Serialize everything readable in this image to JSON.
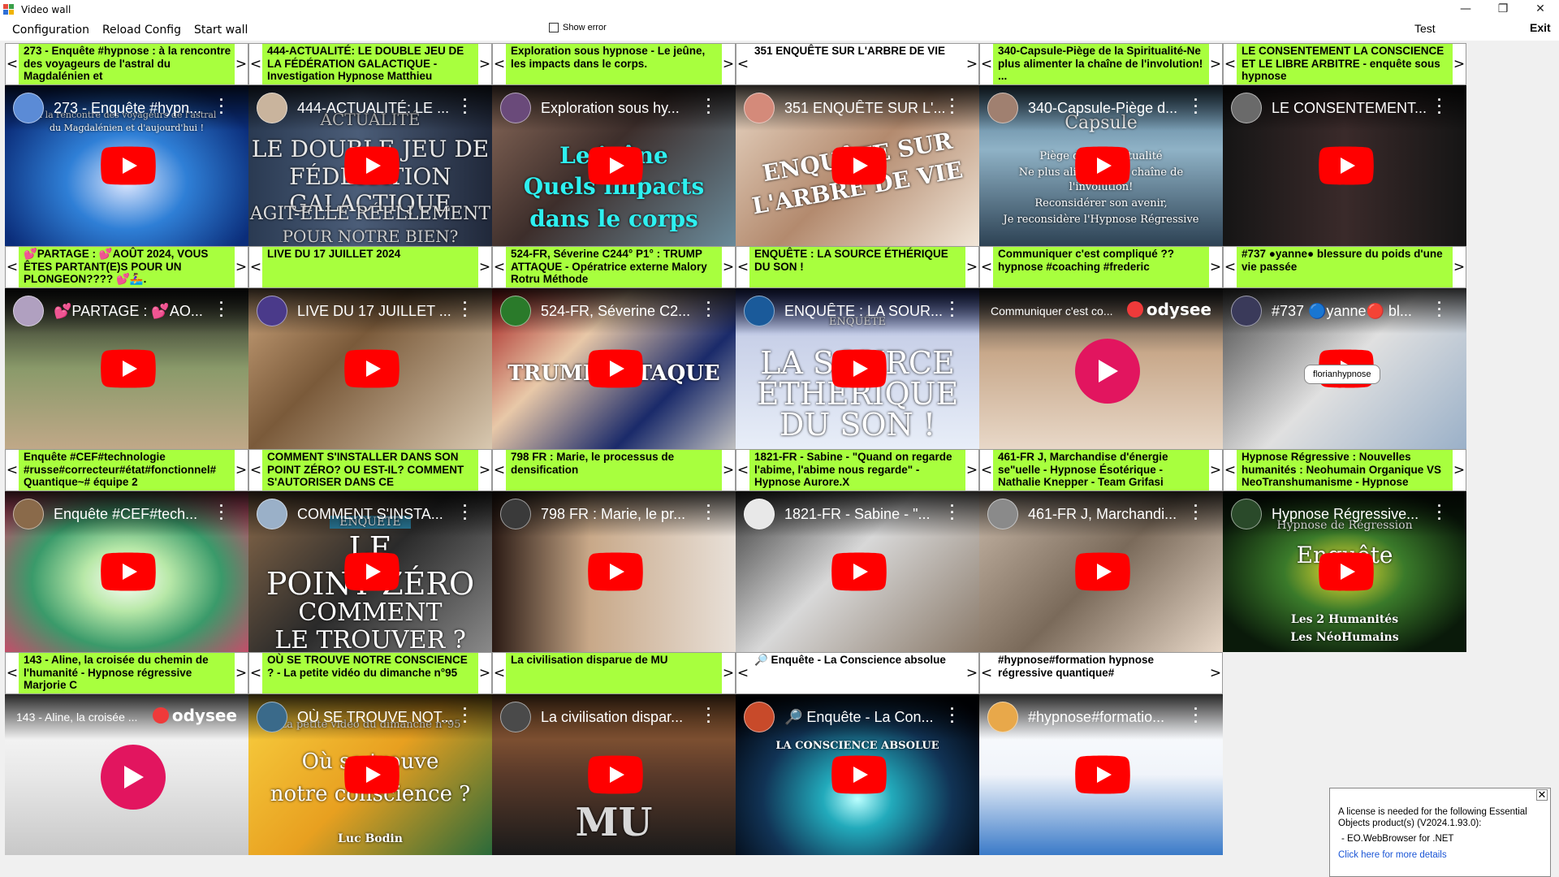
{
  "window": {
    "title": "Video wall",
    "controls": [
      "—",
      "❐",
      "✕"
    ]
  },
  "menu": {
    "configuration": "Configuration",
    "reload": "Reload Config",
    "start": "Start wall",
    "show_error": "Show error",
    "test": "Test",
    "exit": "Exit"
  },
  "nav": {
    "prev": "<",
    "next": ">"
  },
  "cells": [
    {
      "title": "273 - Enquête #hypnose : à la rencontre des voyageurs de l'astral du Magdalénien et",
      "vtitle": "273 - Enquête #hypn...",
      "bar": "green",
      "overlay": [
        "à la rencontre des voyageurs de l'astral",
        "du Magdalénien et d'aujourd'hui !"
      ]
    },
    {
      "title": "444-ACTUALITÉ: LE DOUBLE JEU DE LA FÉDÉRATION GALACTIQUE - Investigation Hypnose Matthieu",
      "vtitle": "444-ACTUALITÉ: LE ...",
      "bar": "green",
      "overlay": [
        "ACTUALITÉ",
        "LE DOUBLE JEU DE LA",
        "FÉDÉRATION GALACTIQUE",
        "AGIT-ELLE RÉELLEMENT",
        "POUR NOTRE BIEN?"
      ]
    },
    {
      "title": "Exploration sous hypnose - Le jeûne, les impacts dans le corps.",
      "vtitle": "Exploration sous hy...",
      "bar": "green",
      "overlay": [
        "Le jeûne",
        "Quels impacts",
        "dans le corps"
      ]
    },
    {
      "title": "351 ENQUÊTE SUR L'ARBRE DE VIE",
      "vtitle": "351 ENQUÊTE SUR L'...",
      "bar": "white",
      "overlay": [
        "ENQUÊTE SUR",
        "L'ARBRE DE VIE"
      ]
    },
    {
      "title": "340-Capsule-Piège de la Spiritualité-Ne plus alimenter la chaîne de l'involution! ...",
      "vtitle": "340-Capsule-Piège d...",
      "bar": "green",
      "overlay": [
        "Capsule",
        "Piège de la Spiritualité",
        "Ne plus alimenter la chaîne de",
        "l'involution!",
        "Reconsidérer son avenir,",
        "Je reconsidère l'Hypnose Régressive"
      ]
    },
    {
      "title": "LE CONSENTEMENT LA CONSCIENCE ET LE LIBRE ARBITRE - enquête sous hypnose",
      "vtitle": "LE CONSENTEMENT...",
      "bar": "green",
      "overlay": []
    },
    {
      "title": "💕PARTAGE : 💕AOÛT 2024, VOUS ÊTES PARTANT(E)S POUR UN PLONGEON???? 💕🚣‍♀️.",
      "vtitle": "💕PARTAGE : 💕AO...",
      "bar": "green",
      "overlay": []
    },
    {
      "title": "LIVE DU 17 JUILLET 2024",
      "vtitle": "LIVE DU 17 JUILLET ...",
      "bar": "green",
      "overlay": []
    },
    {
      "title": "524-FR, Séverine C244° P1° : TRUMP ATTAQUE - Opératrice externe Malory Rotru Méthode",
      "vtitle": "524-FR, Séverine C2...",
      "bar": "green",
      "overlay": [
        "TRUMP ATTAQUE"
      ]
    },
    {
      "title": "ENQUÊTE : LA SOURCE ÉTHÉRIQUE DU SON !",
      "vtitle": "ENQUÊTE : LA SOUR...",
      "bar": "green",
      "overlay": [
        "ENQUÊTE",
        "LA SOURCE",
        "ÉTHÉRIQUE",
        "DU SON !"
      ]
    },
    {
      "title": "Communiquer c'est compliqué ?? hypnose #coaching #frederic",
      "vtitle": "Communiquer c'est co...",
      "bar": "green",
      "overlay": []
    },
    {
      "title": "#737 ●yanne● blessure du poids d'une vie passée",
      "vtitle": "#737 🔵yanne🔴 bl...",
      "bar": "green",
      "overlay": [],
      "tooltip": "florianhypnose"
    },
    {
      "title": "Enquête #CEF#technologie #russe#correcteur#état#fonctionnel# Quantique~# équipe 2",
      "vtitle": "Enquête #CEF#tech...",
      "bar": "green",
      "overlay": []
    },
    {
      "title": "COMMENT S'INSTALLER DANS SON POINT ZÉRO? OU EST-IL? COMMENT S'AUTORISER DANS CE",
      "vtitle": "COMMENT S'INSTA...",
      "bar": "green",
      "overlay": [
        "ENQUÊTE",
        "LE",
        "POINT ZÉRO",
        "COMMENT",
        "LE TROUVER ?"
      ]
    },
    {
      "title": "798 FR : Marie, le processus de densification",
      "vtitle": "798 FR : Marie, le pr...",
      "bar": "green",
      "overlay": []
    },
    {
      "title": "1821-FR - Sabine - \"Quand on regarde l'abime, l'abime nous regarde\" - Hypnose Aurore.X",
      "vtitle": "1821-FR - Sabine - \"...",
      "bar": "green",
      "overlay": []
    },
    {
      "title": "461-FR J, Marchandise d'énergie se\"uelle - Hypnose Ésotérique - Nathalie Knepper - Team Grifasi",
      "vtitle": "461-FR J, Marchandi...",
      "bar": "green",
      "overlay": []
    },
    {
      "title": "Hypnose Régressive : Nouvelles humanités : Neohumain Organique VS NeoTranshumanisme - Hypnose",
      "vtitle": "Hypnose Régressive...",
      "bar": "green",
      "overlay": [
        "Hypnose de Régression",
        "Enquête",
        "Les 2 Humanités",
        "Les NéoHumains"
      ]
    },
    {
      "title": "143 - Aline, la croisée du chemin de l'humanité - Hypnose régressive Marjorie C",
      "vtitle": "143 - Aline, la croisée ...",
      "bar": "green",
      "overlay": []
    },
    {
      "title": "OÙ SE TROUVE NOTRE CONSCIENCE ? - La petite vidéo du dimanche n°95",
      "vtitle": "OÙ SE TROUVE NOT...",
      "bar": "green",
      "overlay": [
        "La petite vidéo du dimanche n°95",
        "Où se trouve",
        "notre conscience ?",
        "Luc Bodin"
      ]
    },
    {
      "title": "La civilisation disparue de MU",
      "vtitle": "La civilisation dispar...",
      "bar": "green",
      "overlay": [
        "MU"
      ]
    },
    {
      "title": "🔎 Enquête - La Conscience absolue",
      "vtitle": "🔎 Enquête - La Con...",
      "bar": "white",
      "overlay": [
        "LA CONSCIENCE ABSOLUE"
      ]
    },
    {
      "title": "#hypnose#formation hypnose régressive quantique#",
      "vtitle": "#hypnose#formatio...",
      "bar": "white",
      "overlay": []
    }
  ],
  "license": {
    "text": "A license is needed for the following Essential Objects product(s) (V2024.1.93.0):",
    "product": "- EO.WebBrowser for .NET",
    "link": "Click here for more details",
    "close": "✕"
  }
}
